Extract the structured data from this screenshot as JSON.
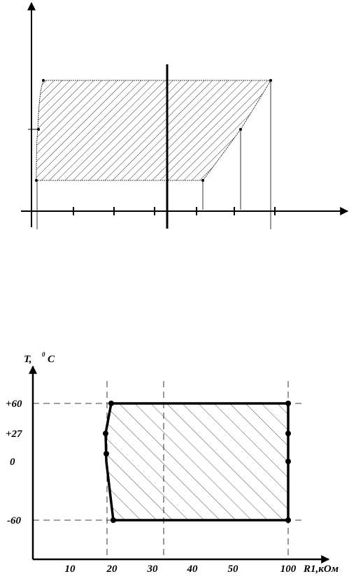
{
  "bottom_figure": {
    "y_axis_label": {
      "text": "T,",
      "superscript": "0",
      "unit": "C"
    },
    "x_axis_label": "R1,кОм",
    "y_tick_labels": [
      "+60",
      "+27",
      "0",
      "-60"
    ],
    "x_tick_labels": [
      "10",
      "20",
      "30",
      "40",
      "50",
      "100"
    ]
  }
}
